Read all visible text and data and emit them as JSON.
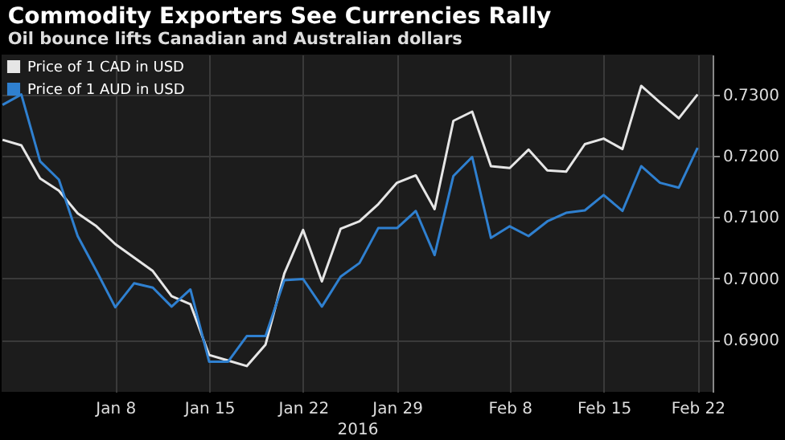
{
  "chart_data": {
    "type": "line",
    "title": "Commodity Exporters See Currencies Rally",
    "subtitle": "Oil bounce lifts Canadian and Australian dollars",
    "xlabel": "2016",
    "categories": [
      null,
      null,
      null,
      null,
      null,
      null,
      "Jan 8",
      null,
      null,
      null,
      null,
      "Jan 15",
      null,
      null,
      null,
      null,
      "Jan 22",
      null,
      null,
      null,
      null,
      "Jan 29",
      null,
      null,
      null,
      null,
      null,
      "Feb 8",
      null,
      null,
      null,
      null,
      "Feb 15",
      null,
      null,
      null,
      null,
      "Feb 22"
    ],
    "series": [
      {
        "name": "Price of 1 CAD in USD",
        "color": "#e6e6e6",
        "values": [
          0.7226,
          0.7217,
          0.7163,
          0.7143,
          0.7106,
          0.7085,
          0.7056,
          0.7034,
          0.7012,
          0.6971,
          0.6958,
          0.6875,
          0.6866,
          0.6857,
          0.6892,
          0.7008,
          0.7079,
          0.6995,
          0.7081,
          0.7093,
          0.7121,
          0.7156,
          0.7168,
          0.7113,
          0.7257,
          0.7272,
          0.7183,
          0.718,
          0.721,
          0.7176,
          0.7174,
          0.7219,
          0.7228,
          0.7211,
          0.7314,
          0.7287,
          0.7261,
          0.73
        ]
      },
      {
        "name": "Price of 1 AUD in USD",
        "color": "#2f80d0",
        "values": [
          0.7283,
          0.73,
          0.7191,
          0.7161,
          0.7069,
          0.7012,
          0.6953,
          0.6992,
          0.6985,
          0.6954,
          0.6982,
          0.6864,
          0.6864,
          0.6906,
          0.6906,
          0.6997,
          0.6999,
          0.6954,
          0.7003,
          0.7025,
          0.7082,
          0.7082,
          0.711,
          0.7038,
          0.7167,
          0.7198,
          0.7066,
          0.7085,
          0.7069,
          0.7093,
          0.7107,
          0.7111,
          0.7136,
          0.711,
          0.7183,
          0.7156,
          0.7148,
          0.7213
        ]
      }
    ],
    "ylim": [
      0.6815,
      0.7365
    ],
    "yticks": [
      {
        "value": 0.69,
        "label": "0.6900"
      },
      {
        "value": 0.7,
        "label": "0.7000"
      },
      {
        "value": 0.71,
        "label": "0.7100"
      },
      {
        "value": 0.72,
        "label": "0.7200"
      },
      {
        "value": 0.73,
        "label": "0.7300"
      }
    ],
    "grid": true,
    "legend": "top left",
    "marker": "none",
    "line_style": "solid"
  }
}
